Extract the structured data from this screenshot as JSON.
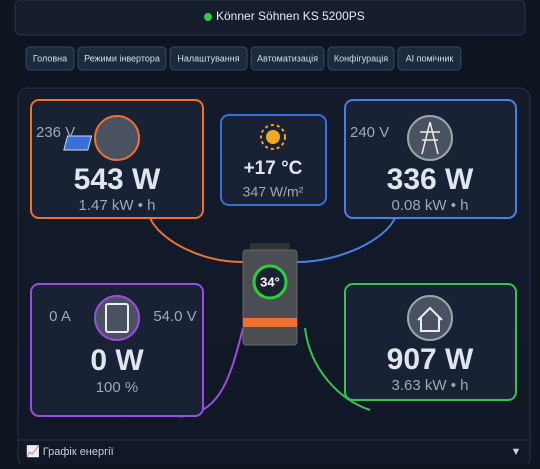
{
  "header": {
    "title": "Könner Söhnen KS 5200PS"
  },
  "tabs": [
    "Головна",
    "Режими інвертора",
    "Налаштування",
    "Автоматизація",
    "Конфігурація",
    "AI помічник"
  ],
  "solar": {
    "voltage": "236 V",
    "power": "543 W",
    "energy": "1.47 kW • h"
  },
  "weather": {
    "temperature": "+17 °C",
    "irradiance": "347 W/m²"
  },
  "grid": {
    "voltage": "240 V",
    "power": "336 W",
    "energy": "0.08 kW • h"
  },
  "inverter": {
    "temperature": "34°"
  },
  "battery": {
    "current": "0 A",
    "voltage": "54.0 V",
    "power": "0 W",
    "charge": "100 %"
  },
  "load": {
    "power": "907 W",
    "energy": "3.63 kW • h"
  },
  "footer": {
    "label": "📈 Графік енергії",
    "toggle": "▼"
  }
}
